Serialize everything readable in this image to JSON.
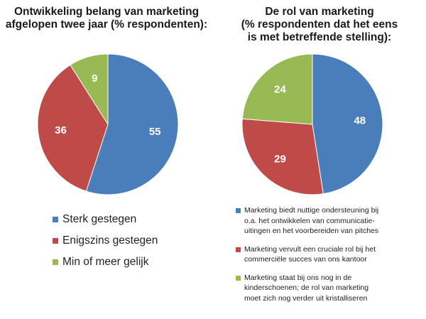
{
  "chart_data": [
    {
      "type": "pie",
      "title_lines": [
        "Ontwikkeling belang van marketing",
        "afgelopen twee jaar (% respondenten):"
      ],
      "categories": [
        "Sterk gestegen",
        "Enigszins gestegen",
        "Min of meer gelijk"
      ],
      "values": [
        55,
        36,
        9
      ],
      "colors": [
        "#4a7ebb",
        "#be4b48",
        "#98b954"
      ],
      "legend": "bottom"
    },
    {
      "type": "pie",
      "title_lines": [
        "De rol van marketing",
        "(% respondenten dat het eens",
        "is met betreffende stelling):"
      ],
      "values": [
        48,
        29,
        24
      ],
      "colors": [
        "#4a7ebb",
        "#be4b48",
        "#98b954"
      ],
      "legend_lines": [
        [
          "Marketing biedt nuttige ondersteuning bij",
          "o.a. het ontwikkelen van communicatie-",
          "uitingen en het voorbereiden van pitches"
        ],
        [
          "Marketing vervult een cruciale rol bij het",
          "commerciële succes van ons kantoor"
        ],
        [
          "Marketing staat bij ons nog in de",
          "kinderschoenen; de rol van marketing",
          "moet zich nog verder uit kristalliseren"
        ]
      ],
      "legend": "bottom"
    }
  ]
}
